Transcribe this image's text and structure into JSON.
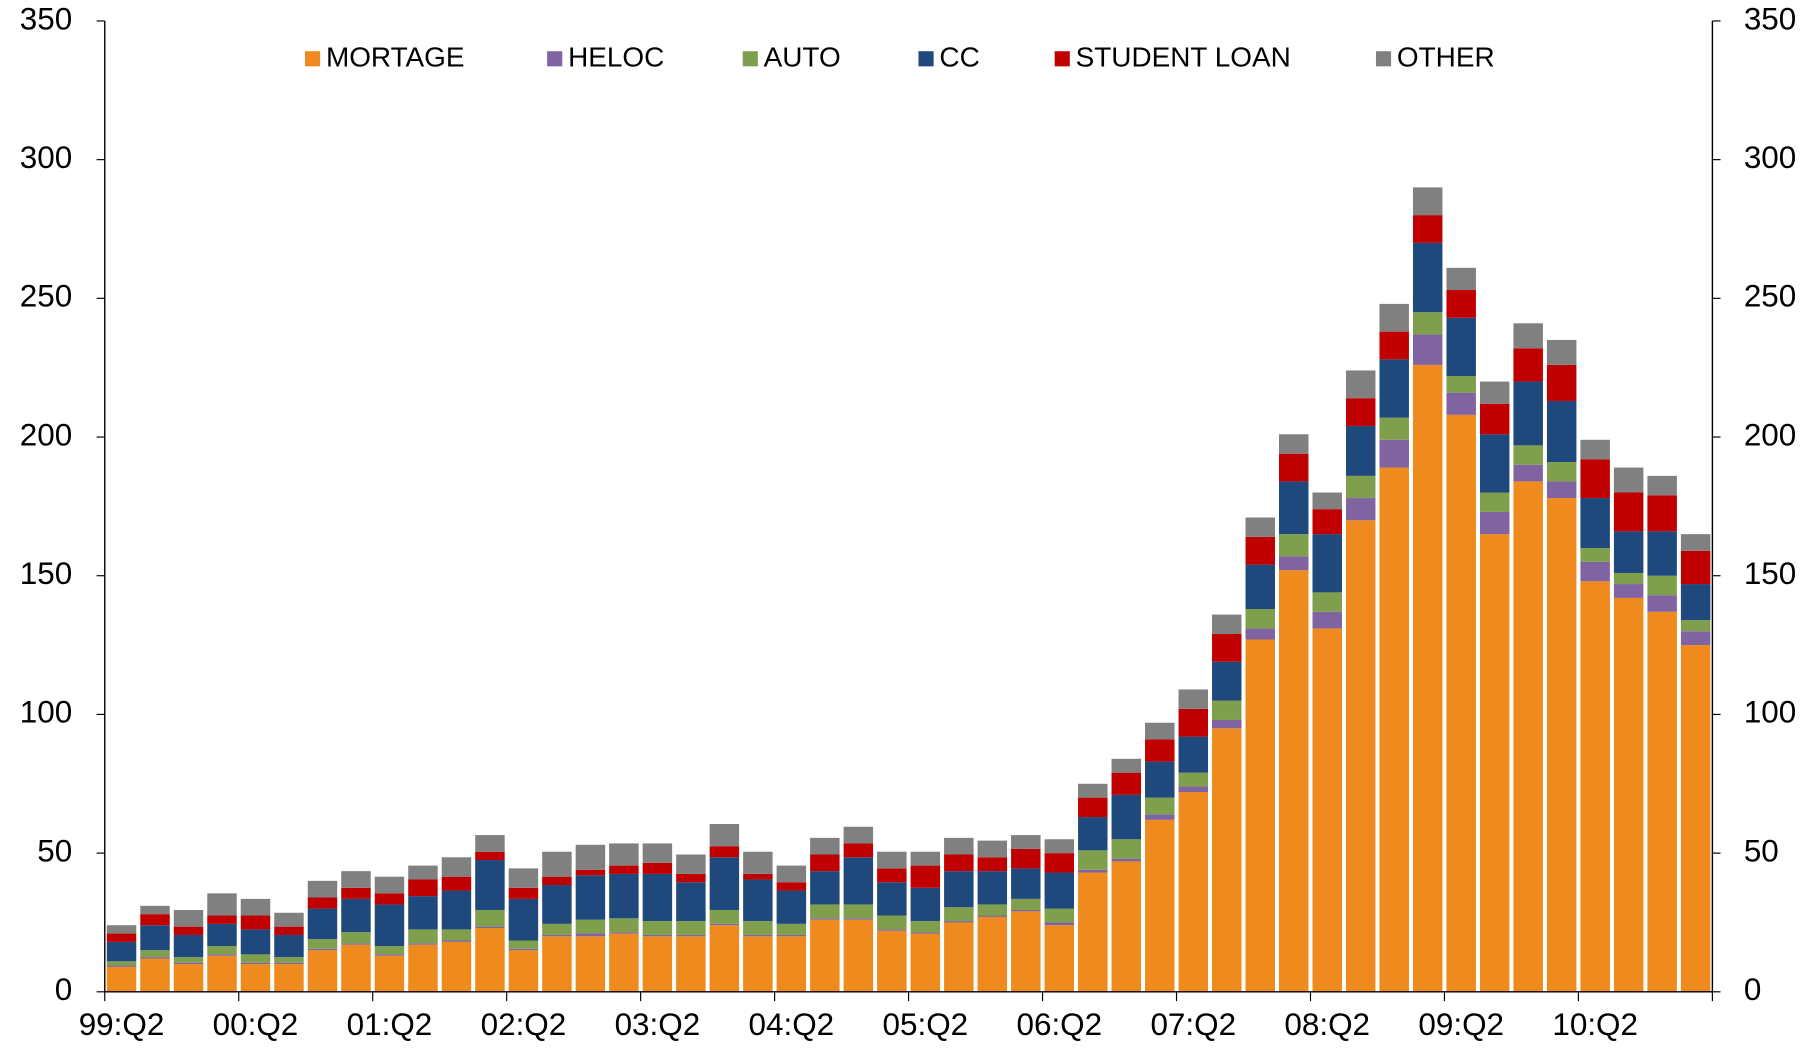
{
  "chart_data": {
    "type": "stacked-bar",
    "categories": [
      "99:Q2",
      null,
      null,
      null,
      "00:Q2",
      null,
      null,
      null,
      "01:Q2",
      null,
      null,
      null,
      "02:Q2",
      null,
      null,
      null,
      "03:Q2",
      null,
      null,
      null,
      "04:Q2",
      null,
      null,
      null,
      "05:Q2",
      null,
      null,
      null,
      "06:Q2",
      null,
      null,
      null,
      "07:Q2",
      null,
      null,
      null,
      "08:Q2",
      null,
      null,
      null,
      "09:Q2",
      null,
      null,
      null,
      "10:Q2",
      null,
      null,
      null
    ],
    "series": [
      {
        "name": "MORTAGE",
        "color": "#ef8a1e",
        "values": [
          9,
          12,
          10,
          13,
          10,
          10,
          15,
          17,
          13,
          17,
          18,
          23,
          15,
          20,
          20,
          21,
          20,
          20,
          24,
          20,
          20,
          26,
          26,
          22,
          21,
          25,
          27,
          29,
          24,
          43,
          47,
          62,
          72,
          95,
          127,
          152,
          131,
          170,
          189,
          226,
          208,
          165,
          184,
          178,
          148,
          142,
          137,
          125
        ]
      },
      {
        "name": "HELOC",
        "color": "#8064a2",
        "values": [
          0.5,
          0.5,
          0.5,
          0.5,
          0.5,
          0.5,
          0.5,
          0.5,
          0.5,
          0.5,
          0.5,
          0.5,
          0.5,
          0.5,
          1,
          0.5,
          0.5,
          0.5,
          0.5,
          0.5,
          0.5,
          0.5,
          0.5,
          0.5,
          0.5,
          0.5,
          0.5,
          0.5,
          1,
          1,
          1,
          2,
          2,
          3,
          4,
          5,
          6,
          8,
          10,
          11,
          8,
          8,
          6,
          6,
          7,
          5,
          6,
          5
        ]
      },
      {
        "name": "AUTO",
        "color": "#7f9f4d",
        "values": [
          1.5,
          2.5,
          2,
          3,
          3,
          2,
          3.5,
          4,
          3,
          5,
          4,
          6,
          3,
          4,
          5,
          5,
          5,
          5,
          5,
          5,
          4,
          5,
          5,
          5,
          4,
          5,
          4,
          4,
          5,
          7,
          7,
          6,
          5,
          7,
          7,
          8,
          7,
          8,
          8,
          8,
          6,
          7,
          7,
          7,
          5,
          4,
          7,
          4
        ]
      },
      {
        "name": "CC",
        "color": "#1f497d",
        "values": [
          7,
          9,
          8,
          8,
          9,
          8,
          11,
          12,
          15,
          12,
          14,
          18,
          15,
          14,
          16,
          16,
          17,
          14,
          19,
          15,
          12,
          12,
          17,
          12,
          12,
          13,
          12,
          11,
          13,
          12,
          16,
          13,
          13,
          14,
          16,
          19,
          21,
          18,
          21,
          25,
          21,
          21,
          23,
          22,
          18,
          15,
          16,
          13
        ]
      },
      {
        "name": "STUDENT LOAN",
        "color": "#c00000",
        "values": [
          3,
          4,
          3,
          3,
          5,
          3,
          4,
          4,
          4,
          6,
          5,
          3,
          4,
          3,
          2,
          3,
          4,
          3,
          4,
          2,
          3,
          6,
          5,
          5,
          8,
          6,
          5,
          7,
          7,
          7,
          8,
          8,
          10,
          10,
          10,
          10,
          9,
          10,
          10,
          10,
          10,
          11,
          12,
          13,
          14,
          14,
          13,
          12
        ]
      },
      {
        "name": "OTHER",
        "color": "#808080",
        "values": [
          3,
          3,
          6,
          8,
          6,
          5,
          6,
          6,
          6,
          5,
          7,
          6,
          7,
          9,
          9,
          8,
          7,
          7,
          8,
          8,
          6,
          6,
          6,
          6,
          5,
          6,
          6,
          5,
          5,
          5,
          5,
          6,
          7,
          7,
          7,
          7,
          6,
          10,
          10,
          10,
          8,
          8,
          9,
          9,
          7,
          9,
          7,
          6
        ]
      }
    ],
    "ylim": [
      0,
      350
    ],
    "yticks": [
      0,
      50,
      100,
      150,
      200,
      250,
      300,
      350
    ],
    "y2lim": [
      0,
      350
    ],
    "y2ticks": [
      0,
      50,
      100,
      150,
      200,
      250,
      300,
      350
    ],
    "grid": false,
    "legend": "top"
  }
}
